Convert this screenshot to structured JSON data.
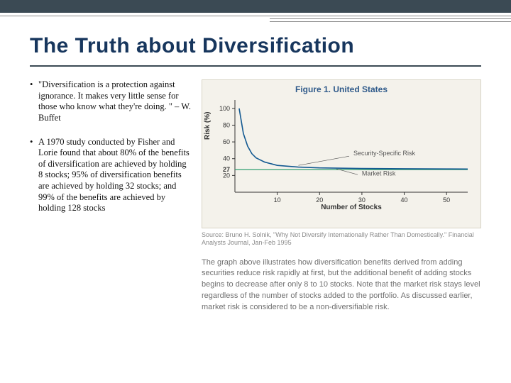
{
  "title": "The Truth about Diversification",
  "bullets": [
    "\"Diversification is a protection against ignorance. It makes very little sense for those who know what they're doing. \" – W. Buffet",
    "A 1970 study conducted by Fisher and Lorie found that about 80% of the benefits of diversification are achieved by holding 8 stocks; 95% of diversification benefits are achieved by holding 32 stocks; and 99% of the benefits are achieved by holding 128 stocks"
  ],
  "figure": {
    "title": "Figure 1. United States",
    "ylabel": "Risk (%)",
    "xlabel": "Number of Stocks",
    "xlim": [
      0,
      55
    ],
    "ylim": [
      0,
      110
    ],
    "yticks": [
      20,
      40,
      60,
      80,
      100
    ],
    "xticks": [
      10,
      20,
      30,
      40,
      50
    ],
    "market_risk_level": 27,
    "market_risk_label": "27",
    "curve": [
      {
        "x": 1,
        "y": 100
      },
      {
        "x": 2,
        "y": 70
      },
      {
        "x": 3,
        "y": 55
      },
      {
        "x": 4,
        "y": 46
      },
      {
        "x": 5,
        "y": 41
      },
      {
        "x": 7,
        "y": 36
      },
      {
        "x": 10,
        "y": 32
      },
      {
        "x": 15,
        "y": 30
      },
      {
        "x": 20,
        "y": 29
      },
      {
        "x": 30,
        "y": 28.3
      },
      {
        "x": 40,
        "y": 28
      },
      {
        "x": 50,
        "y": 27.8
      },
      {
        "x": 55,
        "y": 27.7
      }
    ],
    "label_security": "Security-Specific Risk",
    "label_market": "Market Risk",
    "colors": {
      "background": "#f4f2eb",
      "axis": "#333333",
      "curve": "#145a92",
      "market_line": "#2e9e6f",
      "tick_text": "#333333",
      "annot_text": "#555555"
    },
    "line_width_curve": 1.6,
    "line_width_market": 1.2
  },
  "source": "Source: Bruno H. Solnik, \"Why Not Diversify Internationally Rather Than Domestically.\" Financial Analysts Journal, Jan-Feb 1995",
  "caption": "The graph above illustrates how diversification benefits derived from adding securities reduce risk rapidly at first, but the additional benefit of adding stocks begins to decrease after only 8 to 10 stocks. Note that the market risk stays level regardless of the number of stocks added to the portfolio. As discussed earlier, market risk is considered to be a non-diversifiable risk."
}
